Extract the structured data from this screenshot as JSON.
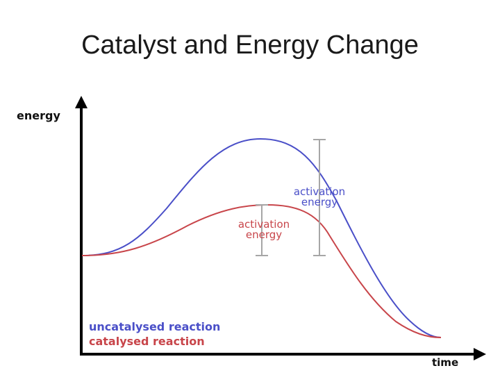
{
  "slide": {
    "title": "Catalyst and Energy Change"
  },
  "axes": {
    "y_label": "energy",
    "x_label": "time"
  },
  "annotations": {
    "uncatalysed": {
      "line1": "activation",
      "line2": "energy"
    },
    "catalysed": {
      "line1": "activation",
      "line2": "energy"
    }
  },
  "legend": {
    "uncatalysed": "uncatalysed reaction",
    "catalysed": "catalysed reaction"
  },
  "colors": {
    "uncatalysed": "#4a4fc8",
    "catalysed": "#c8454a",
    "bracket": "#a6a6a6",
    "axis": "#000000"
  }
}
